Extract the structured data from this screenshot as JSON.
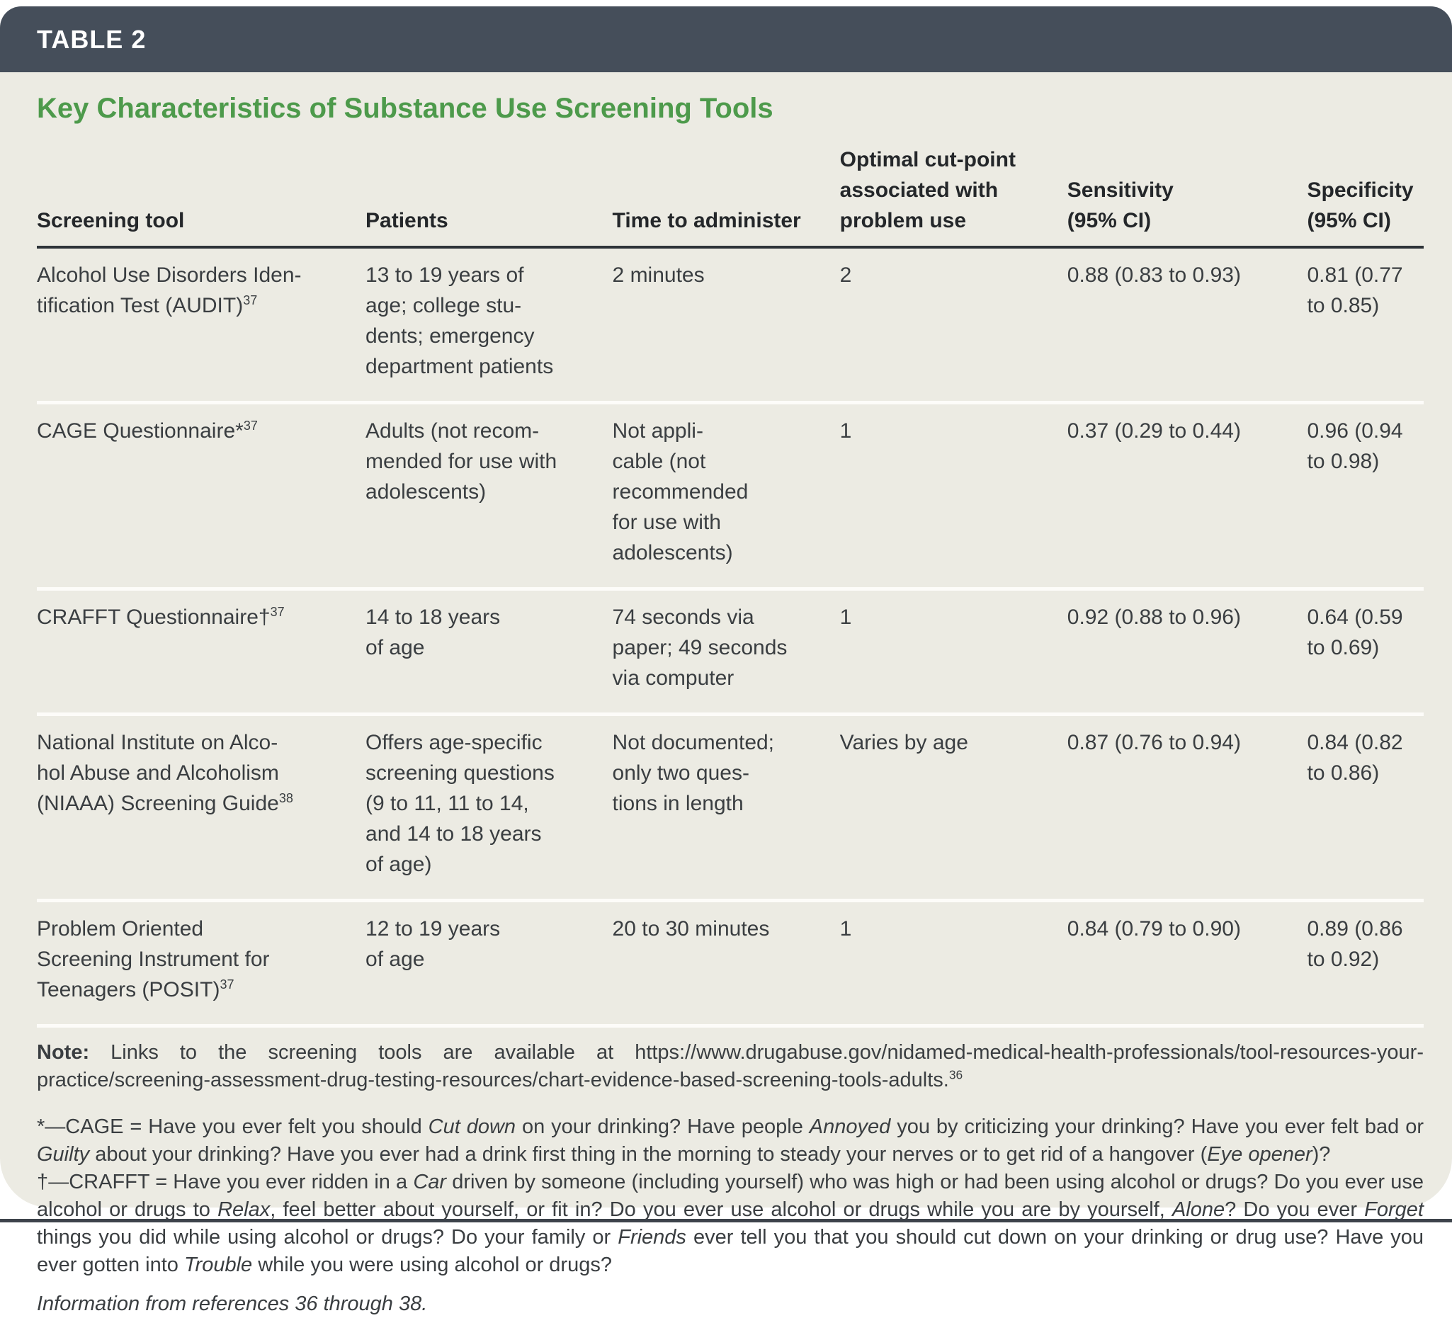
{
  "colors": {
    "bar_bg": "#454e5a",
    "card_bg": "#ecebe3",
    "title_green": "#4d9a4b",
    "rule_dark": "#2d3338",
    "row_separator": "#fdfcf9"
  },
  "header": {
    "table_label": "TABLE 2",
    "title": "Key Characteristics of Substance Use Screening Tools"
  },
  "table": {
    "columns": [
      {
        "label": "Screening tool"
      },
      {
        "label": "Patients"
      },
      {
        "label": "Time to administer"
      },
      {
        "label": "Optimal cut-point\nassociated with\nproblem use"
      },
      {
        "label": "Sensitivity\n(95% CI)"
      },
      {
        "label": "Specificity\n(95% CI)"
      }
    ],
    "rows": [
      {
        "tool": [
          {
            "t": "Alcohol Use Disorders Iden-\ntification Test (AUDIT)"
          },
          {
            "t": "37",
            "s": "sup"
          }
        ],
        "patients": "13 to 19 years of\nage; college stu-\ndents; emergency\ndepartment patients",
        "time": "2 minutes",
        "cutpoint": "2",
        "sensitivity": "0.88 (0.83 to 0.93)",
        "specificity": "0.81 (0.77\nto 0.85)"
      },
      {
        "tool": [
          {
            "t": "CAGE Questionnaire*"
          },
          {
            "t": "37",
            "s": "sup"
          }
        ],
        "patients": "Adults (not recom-\nmended for use with\nadolescents)",
        "time": "Not appli-\ncable (not\nrecommended\nfor use with\nadolescents)",
        "cutpoint": "1",
        "sensitivity": "0.37 (0.29 to 0.44)",
        "specificity": "0.96 (0.94\nto 0.98)"
      },
      {
        "tool": [
          {
            "t": "CRAFFT Questionnaire†"
          },
          {
            "t": "37",
            "s": "sup"
          }
        ],
        "patients": "14 to 18 years\nof age",
        "time": "74 seconds via\npaper; 49 seconds\nvia computer",
        "cutpoint": "1",
        "sensitivity": "0.92 (0.88 to 0.96)",
        "specificity": "0.64 (0.59\nto 0.69)"
      },
      {
        "tool": [
          {
            "t": "National Institute on Alco-\nhol Abuse and Alcoholism\n(NIAAA) Screening Guide"
          },
          {
            "t": "38",
            "s": "sup"
          }
        ],
        "patients": "Offers age-specific\nscreening questions\n(9 to 11, 11 to 14,\nand 14 to 18 years\nof age)",
        "time": "Not documented;\nonly two ques-\ntions in length",
        "cutpoint": "Varies by age",
        "sensitivity": "0.87 (0.76 to 0.94)",
        "specificity": "0.84 (0.82\nto 0.86)"
      },
      {
        "tool": [
          {
            "t": "Problem Oriented\nScreening Instrument for\nTeenagers (POSIT)"
          },
          {
            "t": "37",
            "s": "sup"
          }
        ],
        "patients": "12 to 19 years\nof age",
        "time": "20 to 30 minutes",
        "cutpoint": "1",
        "sensitivity": "0.84 (0.79 to 0.90)",
        "specificity": "0.89 (0.86\nto 0.92)"
      }
    ]
  },
  "notes": {
    "note": [
      {
        "t": "Note:",
        "s": "b"
      },
      {
        "t": " Links to the screening tools are available at https://www.drugabuse.gov/nidamed-medical-health-professionals/tool-resources-your-practice/screening-assessment-drug-testing-resources/chart-evidence-based-screening-tools-adults."
      },
      {
        "t": "36",
        "s": "sup"
      }
    ],
    "cage_footnote": [
      {
        "t": "*—CAGE = Have you ever felt you should "
      },
      {
        "t": "Cut down",
        "s": "i"
      },
      {
        "t": " on your drinking? Have people "
      },
      {
        "t": "Annoyed",
        "s": "i"
      },
      {
        "t": " you by criticizing your drinking? Have you ever felt bad or "
      },
      {
        "t": "Guilty",
        "s": "i"
      },
      {
        "t": " about your drinking? Have you ever had a drink first thing in the morning to steady your nerves or to get rid of a hangover ("
      },
      {
        "t": "Eye opener",
        "s": "i"
      },
      {
        "t": ")?"
      }
    ],
    "crafft_footnote": [
      {
        "t": "†—CRAFFT = Have you ever ridden in a "
      },
      {
        "t": "Car",
        "s": "i"
      },
      {
        "t": " driven by someone (including yourself) who was high or had been using alcohol or drugs? Do you ever use alcohol or drugs to "
      },
      {
        "t": "Relax",
        "s": "i"
      },
      {
        "t": ", feel better about yourself, or fit in? Do you ever use alcohol or drugs while you are by yourself, "
      },
      {
        "t": "Alone",
        "s": "i"
      },
      {
        "t": "? Do you ever "
      },
      {
        "t": "Forget",
        "s": "i"
      },
      {
        "t": " things you did while using alcohol or drugs? Do your family or "
      },
      {
        "t": "Friends",
        "s": "i"
      },
      {
        "t": " ever tell you that you should cut down on your drinking or drug use? Have you ever gotten into "
      },
      {
        "t": "Trouble",
        "s": "i"
      },
      {
        "t": " while you were using alcohol or drugs?"
      }
    ],
    "source": [
      {
        "t": "Information from references 36 through 38.",
        "s": "i"
      }
    ]
  }
}
